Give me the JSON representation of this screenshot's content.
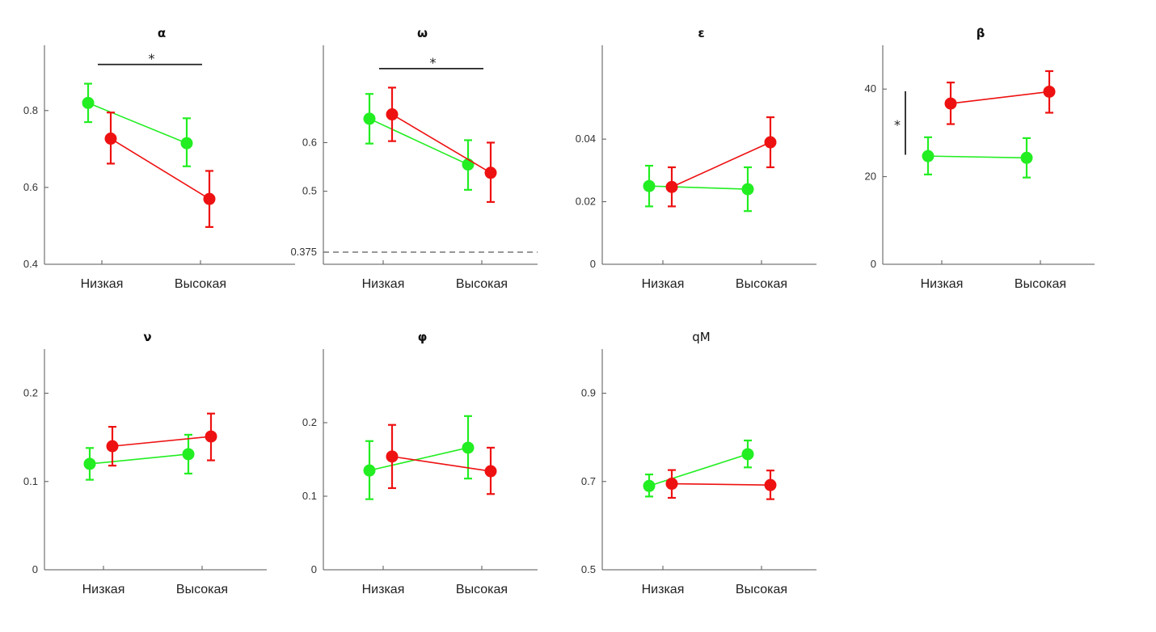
{
  "colors": {
    "green": "#22ee22",
    "red": "#ee1111",
    "axis": "#555555",
    "dashed": "#777777"
  },
  "chart_data": [
    {
      "type": "line",
      "title": "α",
      "categories": [
        "Низкая",
        "Высокая"
      ],
      "ylim": [
        0.4,
        0.97
      ],
      "yticks": [
        0.4,
        0.6,
        0.8
      ],
      "ytick_labels": [
        "0.4",
        "0.6",
        "0.8"
      ],
      "series": [
        {
          "color": "green",
          "values": [
            0.82,
            0.715
          ],
          "err_low": [
            0.77,
            0.655
          ],
          "err_high": [
            0.87,
            0.78
          ]
        },
        {
          "color": "red",
          "values": [
            0.727,
            0.57
          ],
          "err_low": [
            0.662,
            0.497
          ],
          "err_high": [
            0.795,
            0.643
          ]
        }
      ],
      "significance": {
        "orientation": "horizontal",
        "label": "*",
        "level": 0.92
      }
    },
    {
      "type": "line",
      "title": "ω",
      "categories": [
        "Низкая",
        "Высокая"
      ],
      "ylim": [
        0.35,
        0.8
      ],
      "yticks": [
        0.375,
        0.5,
        0.6
      ],
      "ytick_labels": [
        "0.375",
        "0.5",
        "0.6"
      ],
      "series": [
        {
          "color": "green",
          "values": [
            0.649,
            0.555
          ],
          "err_low": [
            0.598,
            0.503
          ],
          "err_high": [
            0.7,
            0.605
          ]
        },
        {
          "color": "red",
          "values": [
            0.658,
            0.538
          ],
          "err_low": [
            0.603,
            0.478
          ],
          "err_high": [
            0.713,
            0.6
          ]
        }
      ],
      "reference_line": {
        "value": 0.375,
        "style": "dashed"
      },
      "significance": {
        "orientation": "horizontal",
        "label": "*",
        "level": 0.752
      }
    },
    {
      "type": "line",
      "title": "ε",
      "categories": [
        "Низкая",
        "Высокая"
      ],
      "ylim": [
        0,
        0.07
      ],
      "yticks": [
        0,
        0.02,
        0.04
      ],
      "ytick_labels": [
        "0",
        "0.02",
        "0.04"
      ],
      "series": [
        {
          "color": "green",
          "values": [
            0.025,
            0.024
          ],
          "err_low": [
            0.0185,
            0.017
          ],
          "err_high": [
            0.0315,
            0.031
          ]
        },
        {
          "color": "red",
          "values": [
            0.0247,
            0.039
          ],
          "err_low": [
            0.0185,
            0.031
          ],
          "err_high": [
            0.031,
            0.047
          ]
        }
      ]
    },
    {
      "type": "line",
      "title": "β",
      "categories": [
        "Низкая",
        "Высокая"
      ],
      "ylim": [
        0,
        50
      ],
      "yticks": [
        0,
        20,
        40
      ],
      "ytick_labels": [
        "0",
        "20",
        "40"
      ],
      "series": [
        {
          "color": "green",
          "values": [
            24.7,
            24.3
          ],
          "err_low": [
            20.5,
            19.8
          ],
          "err_high": [
            29.0,
            28.8
          ]
        },
        {
          "color": "red",
          "values": [
            36.7,
            39.4
          ],
          "err_low": [
            32.0,
            34.6
          ],
          "err_high": [
            41.5,
            44.1
          ]
        }
      ],
      "significance": {
        "orientation": "vertical",
        "label": "*",
        "range": [
          25,
          39.5
        ]
      }
    },
    {
      "type": "line",
      "title": "ν",
      "categories": [
        "Низкая",
        "Высокая"
      ],
      "ylim": [
        0,
        0.25
      ],
      "yticks": [
        0,
        0.1,
        0.2
      ],
      "ytick_labels": [
        "0",
        "0.1",
        "0.2"
      ],
      "series": [
        {
          "color": "green",
          "values": [
            0.12,
            0.131
          ],
          "err_low": [
            0.102,
            0.109
          ],
          "err_high": [
            0.138,
            0.153
          ]
        },
        {
          "color": "red",
          "values": [
            0.14,
            0.151
          ],
          "err_low": [
            0.118,
            0.124
          ],
          "err_high": [
            0.162,
            0.177
          ]
        }
      ]
    },
    {
      "type": "line",
      "title": "φ",
      "categories": [
        "Низкая",
        "Высокая"
      ],
      "ylim": [
        0,
        0.3
      ],
      "yticks": [
        0,
        0.1,
        0.2
      ],
      "ytick_labels": [
        "0",
        "0.1",
        "0.2"
      ],
      "series": [
        {
          "color": "green",
          "values": [
            0.135,
            0.166
          ],
          "err_low": [
            0.096,
            0.124
          ],
          "err_high": [
            0.175,
            0.209
          ]
        },
        {
          "color": "red",
          "values": [
            0.154,
            0.134
          ],
          "err_low": [
            0.111,
            0.103
          ],
          "err_high": [
            0.197,
            0.166
          ]
        }
      ]
    },
    {
      "type": "line",
      "title": "qM",
      "categories": [
        "Низкая",
        "Высокая"
      ],
      "ylim": [
        0.5,
        1.0
      ],
      "yticks": [
        0.5,
        0.7,
        0.9
      ],
      "ytick_labels": [
        "0.5",
        "0.7",
        "0.9"
      ],
      "series": [
        {
          "color": "green",
          "values": [
            0.69,
            0.762
          ],
          "err_low": [
            0.666,
            0.732
          ],
          "err_high": [
            0.716,
            0.793
          ]
        },
        {
          "color": "red",
          "values": [
            0.695,
            0.692
          ],
          "err_low": [
            0.663,
            0.66
          ],
          "err_high": [
            0.726,
            0.725
          ]
        }
      ]
    }
  ]
}
